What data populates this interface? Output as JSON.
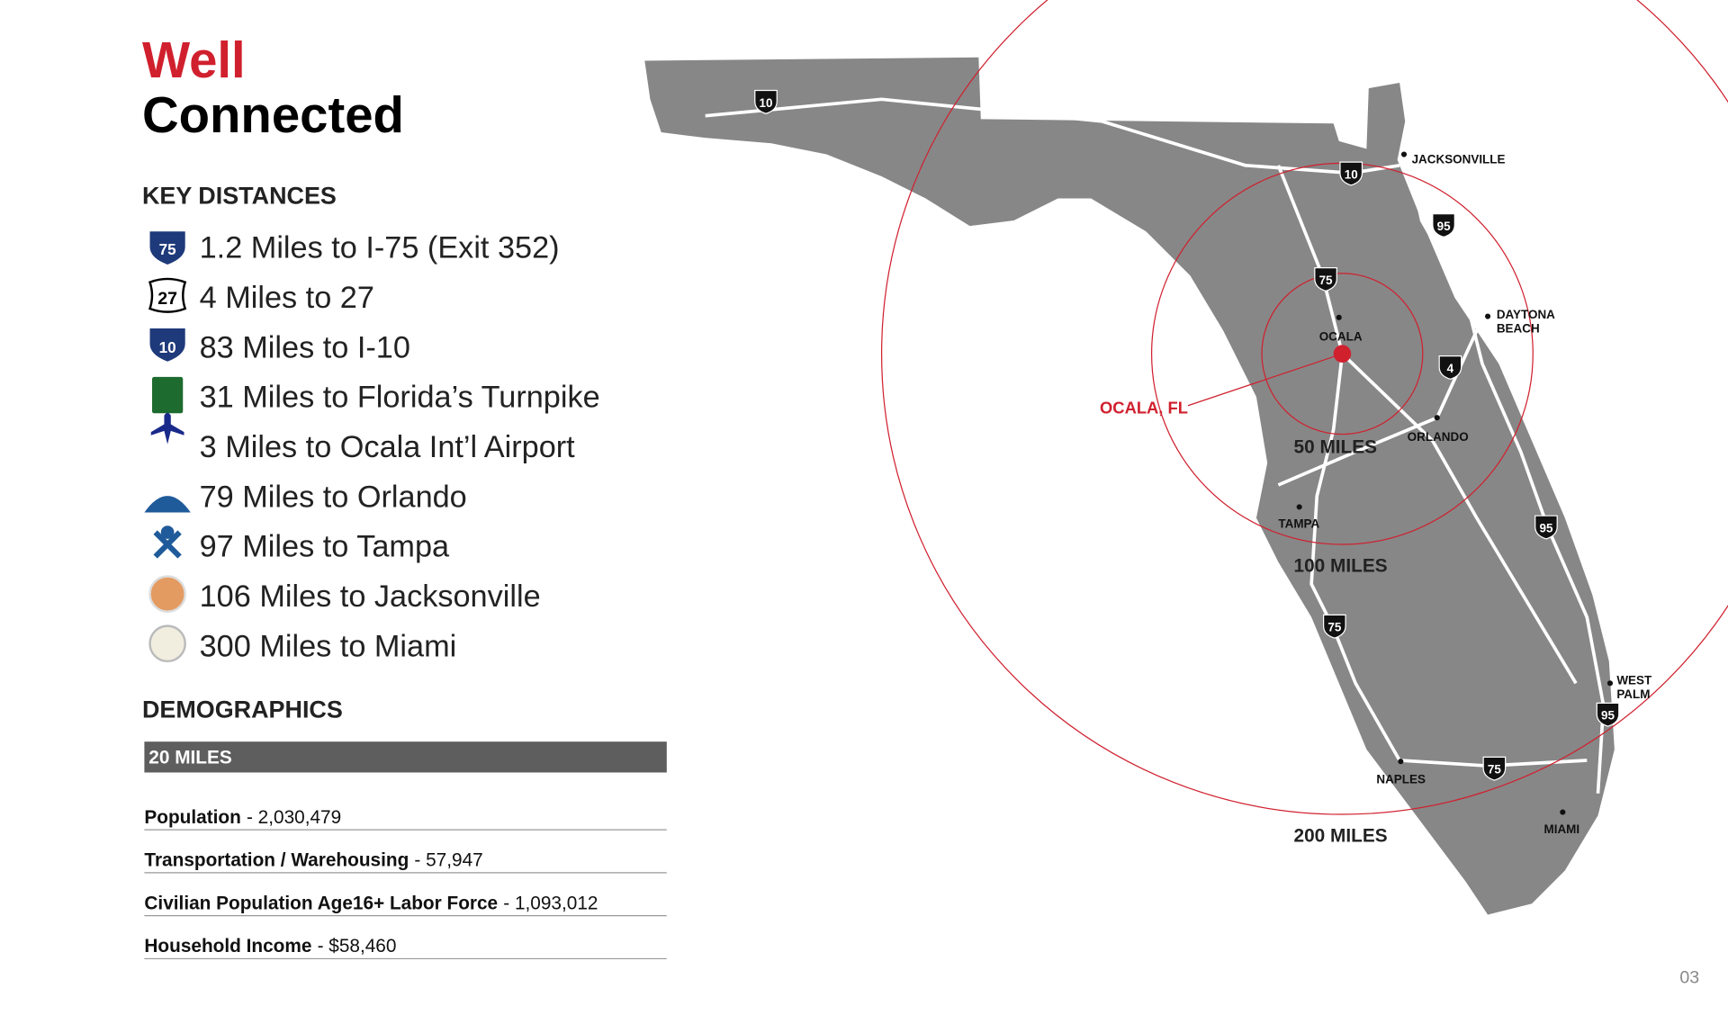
{
  "header": {
    "title_line1": "Well",
    "title_line2": "Connected"
  },
  "key_distances": {
    "heading": "KEY DISTANCES",
    "items": [
      "1.2 Miles to I-75 (Exit 352)",
      "4 Miles to 27",
      "83 Miles to I-10",
      "31 Miles to Florida’s Turnpike",
      "3 Miles to Ocala Int’l Airport",
      "79 Miles to Orlando",
      "97 Miles to Tampa",
      "106 Miles to Jacksonville",
      "300 Miles to Miami"
    ],
    "icon_labels": [
      "75",
      "27",
      "10"
    ]
  },
  "demographics": {
    "heading": "DEMOGRAPHICS",
    "band": "20 MILES",
    "rows": [
      {
        "label": "Population",
        "value": "- 2,030,479"
      },
      {
        "label": "Transportation / Warehousing",
        "value": "- 57,947"
      },
      {
        "label": "Civilian Population Age16+ Labor Force",
        "value": "- 1,093,012"
      },
      {
        "label": "Household Income",
        "value": "- $58,460"
      }
    ]
  },
  "map": {
    "site": "OCALA, FL",
    "rings": [
      "50 MILES",
      "100 MILES",
      "200 MILES"
    ],
    "cities": [
      [
        "JACKSONVILLE"
      ],
      [
        "OCALA"
      ],
      [
        "DAYTONA",
        "BEACH"
      ],
      [
        "ORLANDO"
      ],
      [
        "TAMPA"
      ],
      [
        "WEST",
        "PALM"
      ],
      [
        "NAPLES"
      ],
      [
        "MIAMI"
      ]
    ],
    "shields": [
      "10",
      "10",
      "95",
      "75",
      "4",
      "95",
      "75",
      "95",
      "75"
    ]
  },
  "page_number": "03"
}
